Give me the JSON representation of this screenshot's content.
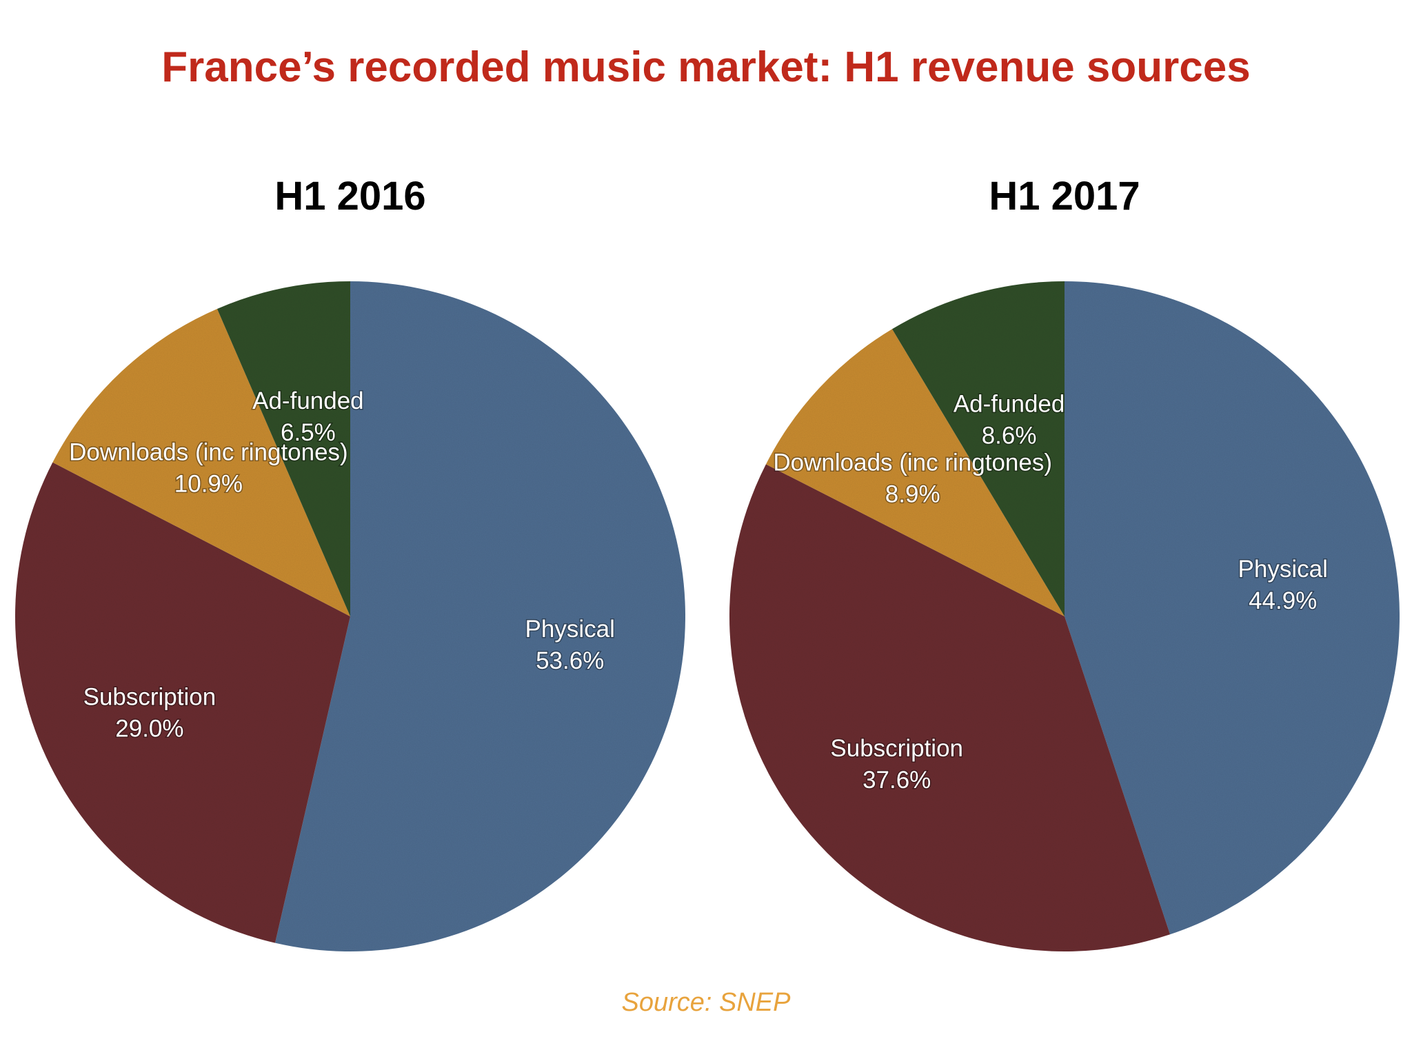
{
  "title": "France’s recorded music market: H1 revenue sources",
  "source": "Source: SNEP",
  "colors": {
    "title": "#c0291b",
    "source": "#e8a33d"
  },
  "chart_data": [
    {
      "type": "pie",
      "title": "H1 2016",
      "categories": [
        "Physical",
        "Subscription",
        "Downloads (inc ringtones)",
        "Ad-funded"
      ],
      "values": [
        53.6,
        29.0,
        10.9,
        6.5
      ],
      "labels": [
        "53.6%",
        "29.0%",
        "10.9%",
        "6.5%"
      ],
      "colors": [
        "#4f6d91",
        "#6b2e33",
        "#c98c32",
        "#33502c"
      ]
    },
    {
      "type": "pie",
      "title": "H1 2017",
      "categories": [
        "Physical",
        "Subscription",
        "Downloads (inc ringtones)",
        "Ad-funded"
      ],
      "values": [
        44.9,
        37.6,
        8.9,
        8.6
      ],
      "labels": [
        "44.9%",
        "37.6%",
        "8.9%",
        "8.6%"
      ],
      "colors": [
        "#4f6d91",
        "#6b2e33",
        "#c98c32",
        "#33502c"
      ]
    }
  ]
}
